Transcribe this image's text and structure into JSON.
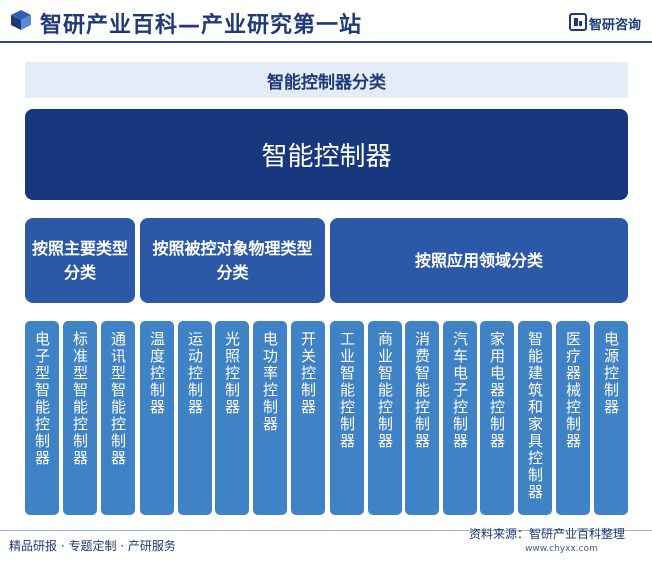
{
  "header": {
    "title": "智研产业百科—产业研究第一站",
    "brand": "智研咨询"
  },
  "subtitle": "智能控制器分类",
  "root": "智能控制器",
  "categories": [
    "按照主要类型分类",
    "按照被控对象物理类型分类",
    "按照应用领域分类"
  ],
  "leaves": [
    "电子型智能控制器",
    "标准型智能控制器",
    "通讯型智能控制器",
    "温度控制器",
    "运动控制器",
    "光照控制器",
    "电功率控制器",
    "开关控制器",
    "工业智能控制器",
    "商业智能控制器",
    "消费智能控制器",
    "汽车电子控制器",
    "家用电器控制器",
    "智能建筑和家具控制器",
    "医疗器械控制器",
    "电源控制器"
  ],
  "footer": {
    "left": "精品研报 · 专题定制 · 产研服务",
    "source": "资料来源：智研产业百科整理",
    "url": "www.chyxx.com"
  },
  "colors": {
    "title_text": "#1f3a78",
    "root_box": "#17387e",
    "category_box": "#2c59a7",
    "leaf_box": "#3f82c6",
    "subtitle_band": "#e4ecf8"
  }
}
